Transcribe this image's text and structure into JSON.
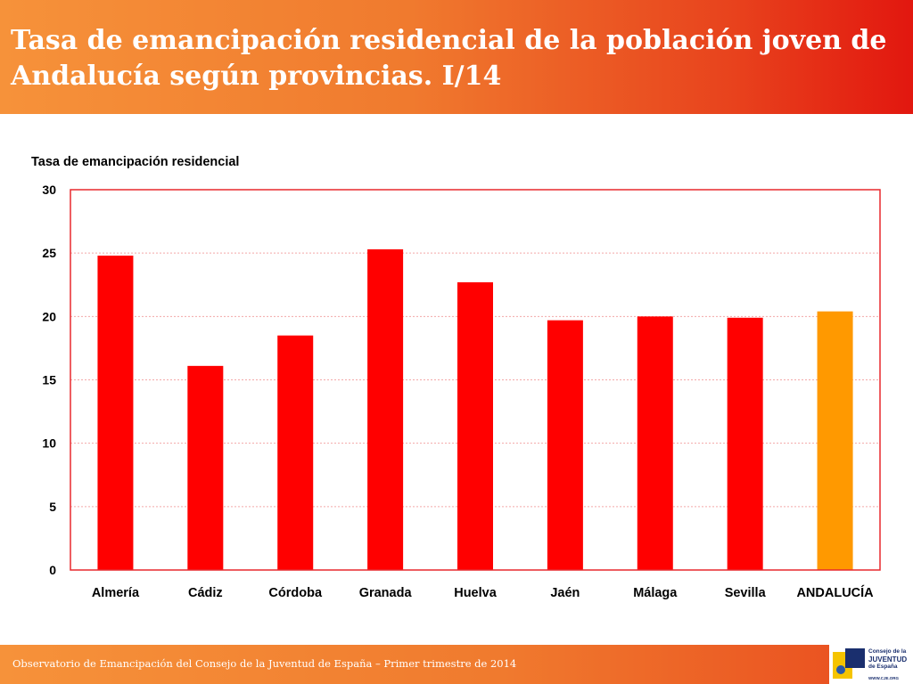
{
  "header": {
    "title": "Tasa de emancipación residencial de la población joven de Andalucía según provincias. I/14"
  },
  "chart_data": {
    "type": "bar",
    "title": "",
    "ylabel": "Tasa de emancipación residencial",
    "xlabel": "",
    "ylim": [
      0,
      30
    ],
    "yticks": [
      0,
      5,
      10,
      15,
      20,
      25,
      30
    ],
    "grid": true,
    "categories": [
      "Almería",
      "Cádiz",
      "Córdoba",
      "Granada",
      "Huelva",
      "Jaén",
      "Málaga",
      "Sevilla",
      "ANDALUCÍA"
    ],
    "values": [
      24.8,
      16.1,
      18.5,
      25.3,
      22.7,
      19.7,
      20.0,
      19.9,
      20.4
    ],
    "bar_colors": [
      "#ff0000",
      "#ff0000",
      "#ff0000",
      "#ff0000",
      "#ff0000",
      "#ff0000",
      "#ff0000",
      "#ff0000",
      "#ff9900"
    ],
    "frame_color": "#e8282d",
    "grid_color": "#f3a8a8"
  },
  "footer": {
    "text": "Observatorio de Emancipación del Consejo de la Juventud de España – Primer trimestre de 2014"
  },
  "logo": {
    "line1": "Consejo de la",
    "line2": "JUVENTUD",
    "line3": "de España",
    "url": "WWW.CJE.ORG",
    "colors": {
      "navy": "#1a2f6e",
      "yellow": "#f5c400",
      "blue": "#2b5aa8"
    }
  }
}
